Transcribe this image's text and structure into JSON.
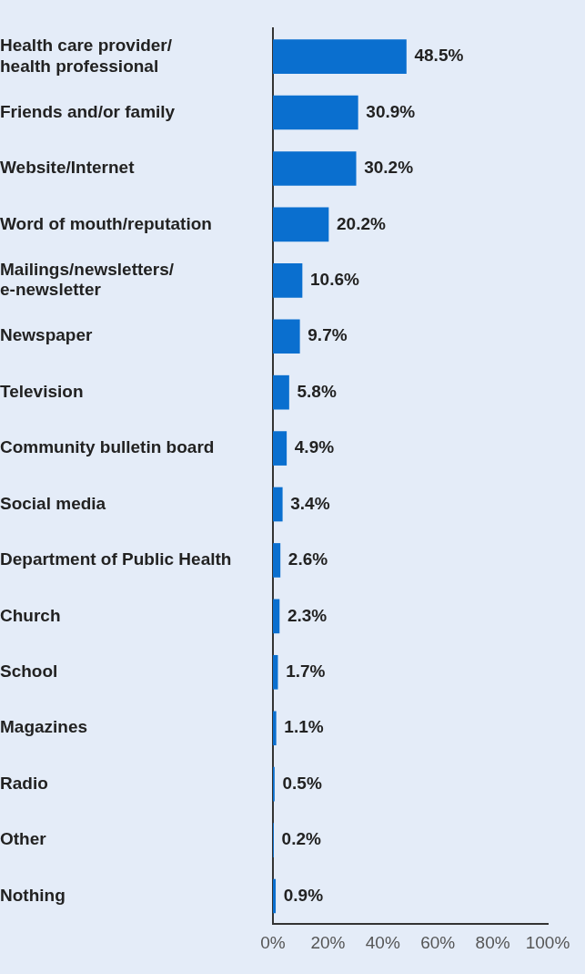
{
  "chart_data": {
    "type": "bar",
    "orientation": "horizontal",
    "categories": [
      "Health care provider/\nhealth professional",
      "Friends and/or family",
      "Website/Internet",
      "Word of mouth/reputation",
      "Mailings/newsletters/\ne-newsletter",
      "Newspaper",
      "Television",
      "Community bulletin board",
      "Social media",
      "Department of Public Health",
      "Church",
      "School",
      "Magazines",
      "Radio",
      "Other",
      "Nothing"
    ],
    "values": [
      48.5,
      30.9,
      30.2,
      20.2,
      10.6,
      9.7,
      5.8,
      4.9,
      3.4,
      2.6,
      2.3,
      1.7,
      1.1,
      0.5,
      0.2,
      0.9
    ],
    "value_labels": [
      "48.5%",
      "30.9%",
      "30.2%",
      "20.2%",
      "10.6%",
      "9.7%",
      "5.8%",
      "4.9%",
      "3.4%",
      "2.6%",
      "2.3%",
      "1.7%",
      "1.1%",
      "0.5%",
      "0.2%",
      "0.9%"
    ],
    "color": "#0a6fcf",
    "xlim": [
      0,
      100
    ],
    "xticks": [
      {
        "value": 0,
        "label": "0%"
      },
      {
        "value": 20,
        "label": "20%"
      },
      {
        "value": 40,
        "label": "40%"
      },
      {
        "value": 60,
        "label": "60%"
      },
      {
        "value": 80,
        "label": "80%"
      },
      {
        "value": 100,
        "label": "100%"
      }
    ],
    "grid": false,
    "legend": false
  }
}
